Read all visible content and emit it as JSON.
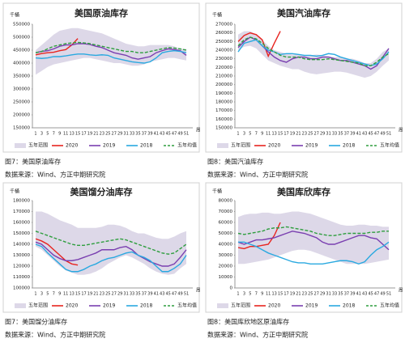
{
  "chart_data": [
    {
      "type": "line",
      "title": "美国原油库存",
      "y_label": "千桶",
      "x_label": "周",
      "categories": [
        "1",
        "3",
        "5",
        "7",
        "9",
        "11",
        "13",
        "15",
        "17",
        "19",
        "21",
        "23",
        "25",
        "27",
        "29",
        "31",
        "33",
        "35",
        "37",
        "39",
        "41",
        "43",
        "45",
        "47",
        "49",
        "51"
      ],
      "ylim": [
        150000,
        550000
      ],
      "yticks": [
        150000,
        200000,
        250000,
        300000,
        350000,
        400000,
        450000,
        500000,
        550000
      ],
      "series": [
        {
          "name": "五年范围",
          "color": "#ddd8e8",
          "kind": "range",
          "high": [
            450000,
            470000,
            490000,
            510000,
            525000,
            530000,
            535000,
            535000,
            530000,
            525000,
            520000,
            515000,
            505000,
            495000,
            485000,
            475000,
            470000,
            465000,
            465000,
            470000,
            470000,
            470000,
            470000,
            465000,
            455000,
            455000
          ],
          "low": [
            355000,
            370000,
            385000,
            395000,
            400000,
            405000,
            410000,
            415000,
            420000,
            420000,
            415000,
            410000,
            405000,
            400000,
            400000,
            395000,
            390000,
            390000,
            395000,
            405000,
            410000,
            415000,
            420000,
            420000,
            415000,
            410000
          ]
        },
        {
          "name": "2020",
          "color": "#e8241f",
          "values": [
            432000,
            437000,
            440000,
            442000,
            448000,
            452000,
            470000,
            495000,
            null,
            null,
            null,
            null,
            null,
            null,
            null,
            null,
            null,
            null,
            null,
            null,
            null,
            null,
            null,
            null,
            null,
            null
          ]
        },
        {
          "name": "2019",
          "color": "#7a3fb0",
          "values": [
            440000,
            445000,
            448000,
            455000,
            465000,
            470000,
            470000,
            475000,
            475000,
            472000,
            465000,
            460000,
            450000,
            440000,
            435000,
            430000,
            420000,
            415000,
            420000,
            425000,
            440000,
            448000,
            455000,
            452000,
            448000,
            430000
          ]
        },
        {
          "name": "2018",
          "color": "#2aa9e0",
          "values": [
            420000,
            418000,
            420000,
            425000,
            425000,
            428000,
            432000,
            435000,
            435000,
            432000,
            430000,
            432000,
            430000,
            420000,
            415000,
            410000,
            405000,
            402000,
            400000,
            405000,
            420000,
            440000,
            445000,
            448000,
            445000,
            440000
          ]
        },
        {
          "name": "五年均值",
          "color": "#2e9e3e",
          "dashed": true,
          "values": [
            440000,
            445000,
            455000,
            465000,
            470000,
            475000,
            478000,
            480000,
            478000,
            475000,
            470000,
            465000,
            460000,
            455000,
            450000,
            445000,
            445000,
            440000,
            440000,
            445000,
            450000,
            455000,
            460000,
            458000,
            455000,
            450000
          ]
        }
      ]
    },
    {
      "type": "line",
      "title": "美国汽油库存",
      "y_label": "千桶",
      "x_label": "周",
      "categories": [
        "1",
        "3",
        "5",
        "7",
        "9",
        "11",
        "13",
        "15",
        "17",
        "19",
        "21",
        "23",
        "25",
        "27",
        "29",
        "31",
        "33",
        "35",
        "37",
        "39",
        "41",
        "43",
        "45",
        "47",
        "49",
        "51"
      ],
      "ylim": [
        150000,
        270000
      ],
      "yticks": [
        150000,
        160000,
        170000,
        180000,
        190000,
        200000,
        210000,
        220000,
        230000,
        240000,
        250000,
        260000,
        270000
      ],
      "series": [
        {
          "name": "五年范围",
          "color": "#ddd8e8",
          "kind": "range",
          "high": [
            258000,
            262000,
            262000,
            258000,
            252000,
            245000,
            240000,
            238000,
            236000,
            235000,
            235000,
            234000,
            234000,
            235000,
            234000,
            233000,
            232000,
            232000,
            230000,
            230000,
            228000,
            225000,
            225000,
            230000,
            238000,
            242000
          ],
          "low": [
            240000,
            244000,
            245000,
            242000,
            235000,
            228000,
            225000,
            222000,
            220000,
            218000,
            218000,
            215000,
            213000,
            212000,
            213000,
            214000,
            215000,
            215000,
            214000,
            212000,
            210000,
            208000,
            210000,
            215000,
            222000,
            228000
          ]
        },
        {
          "name": "2020",
          "color": "#e8241f",
          "values": [
            250000,
            257000,
            260000,
            258000,
            252000,
            233000,
            248000,
            262000,
            null,
            null,
            null,
            null,
            null,
            null,
            null,
            null,
            null,
            null,
            null,
            null,
            null,
            null,
            null,
            null,
            null,
            null
          ]
        },
        {
          "name": "2019",
          "color": "#7a3fb0",
          "values": [
            243000,
            250000,
            255000,
            252000,
            245000,
            238000,
            232000,
            228000,
            226000,
            230000,
            232000,
            232000,
            230000,
            230000,
            232000,
            232000,
            230000,
            228000,
            228000,
            226000,
            224000,
            222000,
            218000,
            222000,
            232000,
            242000
          ]
        },
        {
          "name": "2018",
          "color": "#2aa9e0",
          "values": [
            238000,
            248000,
            250000,
            252000,
            245000,
            240000,
            238000,
            235000,
            236000,
            236000,
            235000,
            234000,
            234000,
            233000,
            234000,
            236000,
            235000,
            232000,
            230000,
            228000,
            226000,
            224000,
            222000,
            224000,
            230000,
            238000
          ]
        },
        {
          "name": "五年均值",
          "color": "#2e9e3e",
          "dashed": true,
          "values": [
            245000,
            252000,
            255000,
            253000,
            248000,
            242000,
            238000,
            234000,
            232000,
            232000,
            232000,
            230000,
            229000,
            229000,
            229000,
            230000,
            229000,
            228000,
            227000,
            226000,
            225000,
            222000,
            222000,
            226000,
            232000,
            236000
          ]
        }
      ]
    },
    {
      "type": "line",
      "title": "美国馏分油库存",
      "y_label": "千桶",
      "x_label": "周",
      "categories": [
        "1",
        "3",
        "5",
        "7",
        "9",
        "11",
        "13",
        "15",
        "17",
        "19",
        "21",
        "23",
        "25",
        "27",
        "29",
        "31",
        "33",
        "35",
        "37",
        "39",
        "41",
        "43",
        "45",
        "47",
        "49",
        "51"
      ],
      "ylim": [
        100000,
        180000
      ],
      "yticks": [
        100000,
        110000,
        120000,
        130000,
        140000,
        150000,
        160000,
        170000,
        180000
      ],
      "series": [
        {
          "name": "五年范围",
          "color": "#ddd8e8",
          "kind": "range",
          "high": [
            170000,
            170000,
            168000,
            165000,
            162000,
            160000,
            158000,
            155000,
            155000,
            155000,
            155000,
            156000,
            158000,
            158000,
            157000,
            155000,
            152000,
            150000,
            150000,
            148000,
            146000,
            145000,
            145000,
            147000,
            150000,
            152000
          ],
          "low": [
            138000,
            135000,
            130000,
            125000,
            120000,
            116000,
            114000,
            112000,
            112000,
            113000,
            115000,
            118000,
            122000,
            125000,
            128000,
            130000,
            128000,
            125000,
            122000,
            118000,
            115000,
            113000,
            112000,
            113000,
            118000,
            122000
          ]
        },
        {
          "name": "2020",
          "color": "#e8241f",
          "values": [
            145000,
            143000,
            140000,
            135000,
            130000,
            125000,
            122000,
            121000,
            null,
            null,
            null,
            null,
            null,
            null,
            null,
            null,
            null,
            null,
            null,
            null,
            null,
            null,
            null,
            null,
            null,
            null
          ]
        },
        {
          "name": "2019",
          "color": "#7a3fb0",
          "values": [
            142000,
            140000,
            135000,
            130000,
            127000,
            125000,
            125000,
            126000,
            128000,
            130000,
            132000,
            135000,
            135000,
            135000,
            137000,
            138000,
            135000,
            130000,
            127000,
            124000,
            122000,
            120000,
            120000,
            122000,
            128000,
            135000
          ]
        },
        {
          "name": "2018",
          "color": "#2aa9e0",
          "values": [
            140000,
            138000,
            132000,
            127000,
            122000,
            117000,
            115000,
            115000,
            117000,
            120000,
            122000,
            125000,
            127000,
            128000,
            130000,
            132000,
            133000,
            130000,
            128000,
            125000,
            120000,
            115000,
            115000,
            118000,
            122000,
            130000
          ]
        },
        {
          "name": "五年均值",
          "color": "#2e9e3e",
          "dashed": true,
          "values": [
            152000,
            150000,
            148000,
            146000,
            144000,
            142000,
            140000,
            139000,
            139000,
            140000,
            141000,
            142000,
            143000,
            144000,
            145000,
            144000,
            142000,
            140000,
            138000,
            136000,
            134000,
            132000,
            131000,
            132000,
            136000,
            140000
          ]
        }
      ]
    },
    {
      "type": "line",
      "title": "美国库欣库存",
      "y_label": "千桶",
      "x_label": "周",
      "categories": [
        "1",
        "3",
        "5",
        "7",
        "9",
        "11",
        "13",
        "15",
        "17",
        "19",
        "21",
        "23",
        "25",
        "27",
        "29",
        "31",
        "33",
        "35",
        "37",
        "39",
        "41",
        "43",
        "45",
        "47",
        "49",
        "51"
      ],
      "ylim": [
        0,
        80000
      ],
      "yticks": [
        0,
        10000,
        20000,
        30000,
        40000,
        50000,
        60000,
        70000,
        80000
      ],
      "series": [
        {
          "name": "五年范围",
          "color": "#ddd8e8",
          "kind": "range",
          "high": [
            65000,
            67000,
            68000,
            68000,
            69000,
            69000,
            68000,
            68000,
            69000,
            70000,
            70000,
            69000,
            68000,
            66000,
            64000,
            62000,
            60000,
            58000,
            57000,
            57000,
            58000,
            58000,
            57000,
            57000,
            56000,
            56000
          ],
          "low": [
            22000,
            22000,
            23000,
            24000,
            25000,
            26000,
            28000,
            30000,
            32000,
            34000,
            35000,
            35000,
            34000,
            32000,
            30000,
            28000,
            26000,
            24000,
            22000,
            22000,
            22000,
            22000,
            23000,
            24000,
            25000,
            26000
          ]
        },
        {
          "name": "2020",
          "color": "#e8241f",
          "values": [
            37000,
            36000,
            38000,
            38000,
            39000,
            40000,
            48000,
            60000,
            null,
            null,
            null,
            null,
            null,
            null,
            null,
            null,
            null,
            null,
            null,
            null,
            null,
            null,
            null,
            null,
            null,
            null
          ]
        },
        {
          "name": "2019",
          "color": "#7a3fb0",
          "values": [
            42000,
            40000,
            42000,
            44000,
            44000,
            45000,
            46000,
            48000,
            50000,
            52000,
            51000,
            50000,
            48000,
            46000,
            42000,
            40000,
            40000,
            42000,
            44000,
            46000,
            48000,
            48000,
            46000,
            45000,
            40000,
            35000
          ]
        },
        {
          "name": "2018",
          "color": "#2aa9e0",
          "values": [
            42000,
            42000,
            40000,
            38000,
            35000,
            32000,
            30000,
            28000,
            26000,
            24000,
            23000,
            23000,
            22000,
            22000,
            22000,
            23000,
            24000,
            25000,
            25000,
            24000,
            22000,
            24000,
            30000,
            35000,
            38000,
            42000
          ]
        },
        {
          "name": "五年均值",
          "color": "#2e9e3e",
          "dashed": true,
          "values": [
            50000,
            49000,
            50000,
            51000,
            52000,
            54000,
            55000,
            55000,
            56000,
            55000,
            54000,
            53000,
            52000,
            50000,
            49000,
            48000,
            48000,
            49000,
            50000,
            50000,
            50000,
            50000,
            51000,
            51000,
            52000,
            52000
          ]
        }
      ]
    }
  ],
  "captions": [
    {
      "figure": "图7：美国原油库存",
      "source": "数据来源：Wind、方正中期研究院"
    },
    {
      "figure": "图8：美国汽油库存",
      "source": "数据来源：Wind、方正中期研究院"
    },
    {
      "figure": "图7：美国馏分油库存",
      "source": "数据来源：Wind、方正中期研究院"
    },
    {
      "figure": "图8：美国库欣地区原油库存",
      "source": "数据来源：Wind、方正中期研究院"
    }
  ]
}
